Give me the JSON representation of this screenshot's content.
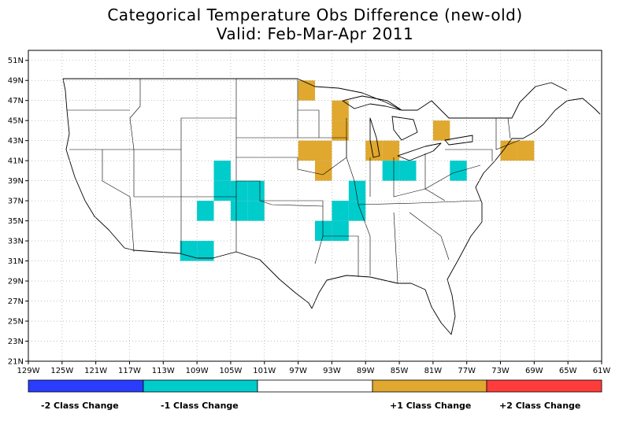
{
  "title": {
    "line1": "Categorical Temperature Obs Difference (new-old)",
    "line2": "Valid: Feb-Mar-Apr 2011"
  },
  "map": {
    "lon_ticks": [
      "129W",
      "125W",
      "121W",
      "117W",
      "113W",
      "109W",
      "105W",
      "101W",
      "97W",
      "93W",
      "89W",
      "85W",
      "81W",
      "77W",
      "73W",
      "69W",
      "65W",
      "61W"
    ],
    "lat_ticks": [
      "21N",
      "23N",
      "25N",
      "27N",
      "29N",
      "31N",
      "33N",
      "35N",
      "37N",
      "39N",
      "41N",
      "43N",
      "45N",
      "47N",
      "49N",
      "51N"
    ],
    "lon_range": [
      -129,
      -61
    ],
    "lat_range": [
      21,
      52
    ],
    "grid_cell_deg": 2,
    "colors": {
      "minus2": "#2a3dff",
      "minus1": "#00cccc",
      "zero": "#ffffff",
      "plus1": "#e0a82e",
      "plus2": "#ff3c3c",
      "grid": "#999999",
      "boundary": "#000000"
    },
    "cells": [
      {
        "lon": -96,
        "lat": 48,
        "class": "plus1"
      },
      {
        "lon": -92,
        "lat": 46,
        "class": "plus1"
      },
      {
        "lon": -92,
        "lat": 44,
        "class": "plus1"
      },
      {
        "lon": -80,
        "lat": 44,
        "class": "plus1"
      },
      {
        "lon": -96,
        "lat": 42,
        "class": "plus1"
      },
      {
        "lon": -94,
        "lat": 42,
        "class": "plus1"
      },
      {
        "lon": -88,
        "lat": 42,
        "class": "plus1"
      },
      {
        "lon": -86,
        "lat": 42,
        "class": "plus1"
      },
      {
        "lon": -72,
        "lat": 42,
        "class": "plus1"
      },
      {
        "lon": -70,
        "lat": 42,
        "class": "plus1"
      },
      {
        "lon": -94,
        "lat": 40,
        "class": "plus1"
      },
      {
        "lon": -106,
        "lat": 40,
        "class": "minus1"
      },
      {
        "lon": -86,
        "lat": 40,
        "class": "minus1"
      },
      {
        "lon": -84,
        "lat": 40,
        "class": "minus1"
      },
      {
        "lon": -78,
        "lat": 40,
        "class": "minus1"
      },
      {
        "lon": -106,
        "lat": 38,
        "class": "minus1"
      },
      {
        "lon": -104,
        "lat": 38,
        "class": "minus1"
      },
      {
        "lon": -102,
        "lat": 38,
        "class": "minus1"
      },
      {
        "lon": -90,
        "lat": 38,
        "class": "minus1"
      },
      {
        "lon": -108,
        "lat": 36,
        "class": "minus1"
      },
      {
        "lon": -104,
        "lat": 36,
        "class": "minus1"
      },
      {
        "lon": -102,
        "lat": 36,
        "class": "minus1"
      },
      {
        "lon": -92,
        "lat": 36,
        "class": "minus1"
      },
      {
        "lon": -90,
        "lat": 36,
        "class": "minus1"
      },
      {
        "lon": -94,
        "lat": 34,
        "class": "minus1"
      },
      {
        "lon": -92,
        "lat": 34,
        "class": "minus1"
      },
      {
        "lon": -110,
        "lat": 32,
        "class": "minus1"
      },
      {
        "lon": -108,
        "lat": 32,
        "class": "minus1"
      }
    ]
  },
  "legend": {
    "minus2": "-2 Class Change",
    "minus1": "-1 Class Change",
    "plus1": "+1 Class Change",
    "plus2": "+2 Class Change"
  }
}
